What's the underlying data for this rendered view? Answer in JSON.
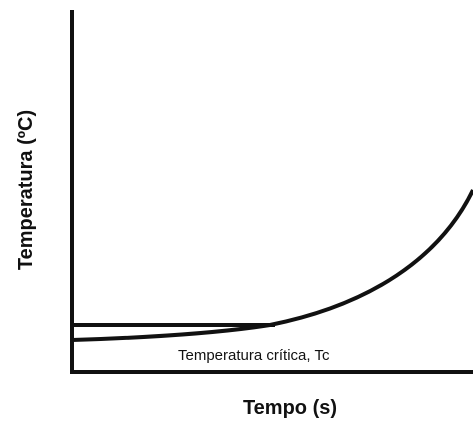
{
  "axes": {
    "x_label": "Tempo (s)",
    "y_label": "Temperatura (ºC)"
  },
  "annotation": "Temperatura crítica, Tc"
}
